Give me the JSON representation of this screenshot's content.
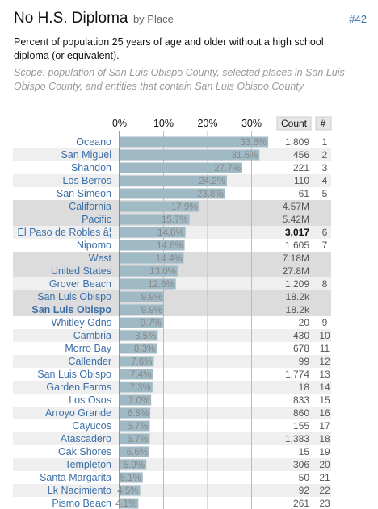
{
  "header": {
    "title": "No H.S. Diploma",
    "title_suffix": "by Place",
    "rank_link": "#42",
    "description": "Percent of population 25 years of age and older without a high school diploma (or equivalent).",
    "scope": "Scope: population of San Luis Obispo County, selected places in San Luis Obispo County, and entities that contain San Luis Obispo County"
  },
  "colors": {
    "bar": "#a0bac5",
    "label": "#3b6fa8",
    "highlight_row": "#dcdcdc",
    "alt_row": "#efefef",
    "gridline": "#bbbbbb"
  },
  "chart_data": {
    "type": "bar",
    "orientation": "horizontal",
    "xlim": [
      0,
      40
    ],
    "ticks": [
      "0%",
      "10%",
      "20%",
      "30%"
    ],
    "tick_values": [
      0,
      10,
      20,
      30
    ],
    "count_header": "Count",
    "rank_header": "#",
    "grid": true,
    "rows": [
      {
        "label": "Oceano",
        "value": 33.6,
        "pct": "33.6%",
        "count": "1,809",
        "rank": "1",
        "hl": false,
        "bold": false
      },
      {
        "label": "San Miguel",
        "value": 31.6,
        "pct": "31.6%",
        "count": "456",
        "rank": "2",
        "hl": false,
        "bold": false
      },
      {
        "label": "Shandon",
        "value": 27.7,
        "pct": "27.7%",
        "count": "221",
        "rank": "3",
        "hl": false,
        "bold": false
      },
      {
        "label": "Los Berros",
        "value": 24.2,
        "pct": "24.2%",
        "count": "110",
        "rank": "4",
        "hl": false,
        "bold": false
      },
      {
        "label": "San Simeon",
        "value": 23.8,
        "pct": "23.8%",
        "count": "61",
        "rank": "5",
        "hl": false,
        "bold": false
      },
      {
        "label": "California",
        "value": 17.9,
        "pct": "17.9%",
        "count": "4.57M",
        "rank": "",
        "hl": true,
        "bold": false
      },
      {
        "label": "Pacific",
        "value": 15.7,
        "pct": "15.7%",
        "count": "5.42M",
        "rank": "",
        "hl": true,
        "bold": false
      },
      {
        "label": "El Paso de Robles â¦",
        "value": 14.8,
        "pct": "14.8%",
        "count": "3,017",
        "rank": "6",
        "hl": false,
        "bold": false,
        "count_bold": true
      },
      {
        "label": "Nipomo",
        "value": 14.6,
        "pct": "14.6%",
        "count": "1,605",
        "rank": "7",
        "hl": false,
        "bold": false
      },
      {
        "label": "West",
        "value": 14.4,
        "pct": "14.4%",
        "count": "7.18M",
        "rank": "",
        "hl": true,
        "bold": false
      },
      {
        "label": "United States",
        "value": 13.0,
        "pct": "13.0%",
        "count": "27.8M",
        "rank": "",
        "hl": true,
        "bold": false
      },
      {
        "label": "Grover Beach",
        "value": 12.6,
        "pct": "12.6%",
        "count": "1,209",
        "rank": "8",
        "hl": false,
        "bold": false
      },
      {
        "label": "San Luis Obispo",
        "value": 9.9,
        "pct": "9.9%",
        "count": "18.2k",
        "rank": "",
        "hl": true,
        "bold": false
      },
      {
        "label": "San Luis Obispo",
        "value": 9.9,
        "pct": "9.9%",
        "count": "18.2k",
        "rank": "",
        "hl": true,
        "bold": true
      },
      {
        "label": "Whitley Gdns",
        "value": 9.7,
        "pct": "9.7%",
        "count": "20",
        "rank": "9",
        "hl": false,
        "bold": false
      },
      {
        "label": "Cambria",
        "value": 8.5,
        "pct": "8.5%",
        "count": "430",
        "rank": "10",
        "hl": false,
        "bold": false
      },
      {
        "label": "Morro Bay",
        "value": 8.3,
        "pct": "8.3%",
        "count": "678",
        "rank": "11",
        "hl": false,
        "bold": false
      },
      {
        "label": "Callender",
        "value": 7.6,
        "pct": "7.6%",
        "count": "99",
        "rank": "12",
        "hl": false,
        "bold": false
      },
      {
        "label": "San Luis Obispo",
        "value": 7.4,
        "pct": "7.4%",
        "count": "1,774",
        "rank": "13",
        "hl": false,
        "bold": false
      },
      {
        "label": "Garden Farms",
        "value": 7.3,
        "pct": "7.3%",
        "count": "18",
        "rank": "14",
        "hl": false,
        "bold": false
      },
      {
        "label": "Los Osos",
        "value": 7.0,
        "pct": "7.0%",
        "count": "833",
        "rank": "15",
        "hl": false,
        "bold": false
      },
      {
        "label": "Arroyo Grande",
        "value": 6.8,
        "pct": "6.8%",
        "count": "860",
        "rank": "16",
        "hl": false,
        "bold": false
      },
      {
        "label": "Cayucos",
        "value": 6.7,
        "pct": "6.7%",
        "count": "155",
        "rank": "17",
        "hl": false,
        "bold": false
      },
      {
        "label": "Atascadero",
        "value": 6.7,
        "pct": "6.7%",
        "count": "1,383",
        "rank": "18",
        "hl": false,
        "bold": false
      },
      {
        "label": "Oak Shores",
        "value": 6.6,
        "pct": "6.6%",
        "count": "15",
        "rank": "19",
        "hl": false,
        "bold": false
      },
      {
        "label": "Templeton",
        "value": 5.9,
        "pct": "5.9%",
        "count": "306",
        "rank": "20",
        "hl": false,
        "bold": false
      },
      {
        "label": "Santa Margarita",
        "value": 5.1,
        "pct": "5.1%",
        "count": "50",
        "rank": "21",
        "hl": false,
        "bold": false
      },
      {
        "label": "Lk Nacimiento",
        "value": 4.5,
        "pct": "4.5%",
        "count": "92",
        "rank": "22",
        "hl": false,
        "bold": false
      },
      {
        "label": "Pismo Beach",
        "value": 4.1,
        "pct": "4.1%",
        "count": "261",
        "rank": "23",
        "hl": false,
        "bold": false
      }
    ]
  }
}
